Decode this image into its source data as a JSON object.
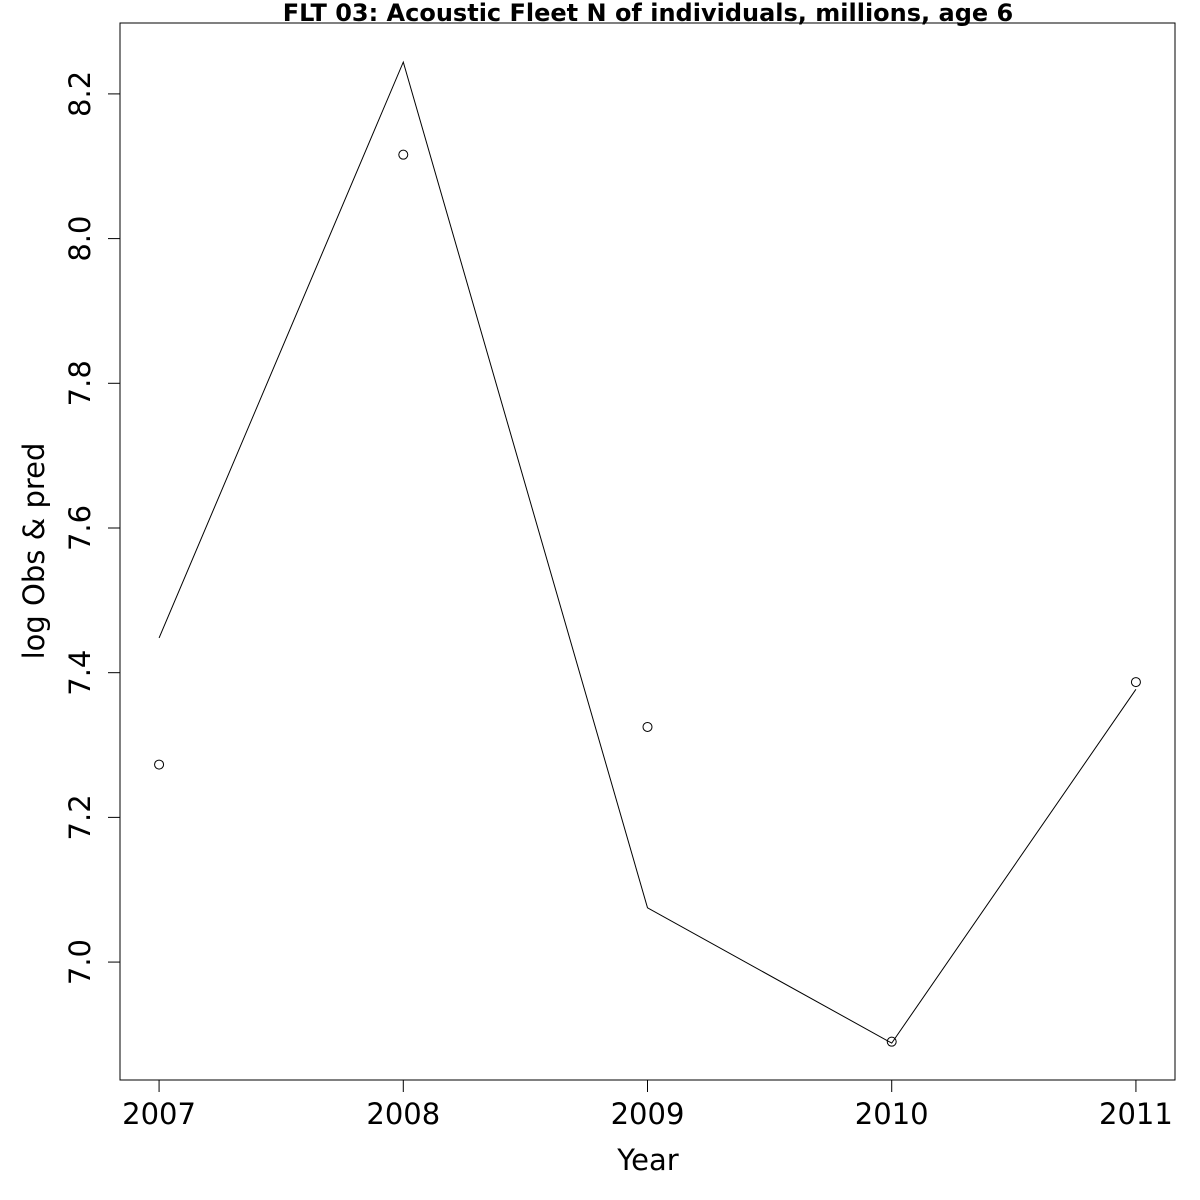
{
  "chart_data": {
    "type": "line",
    "title": "FLT 03: Acoustic Fleet  N of individuals, millions, age 6",
    "xlabel": "Year",
    "ylabel": "log Obs & pred",
    "x": [
      2007,
      2008,
      2009,
      2010,
      2011
    ],
    "x_ticks": [
      "2007",
      "2008",
      "2009",
      "2010",
      "2011"
    ],
    "y_ticks": [
      "7.0",
      "7.2",
      "7.4",
      "7.6",
      "7.8",
      "8.0",
      "8.2"
    ],
    "xlim": [
      2006.84,
      2011.16
    ],
    "ylim": [
      6.837,
      8.298
    ],
    "grid": false,
    "series": [
      {
        "kind": "line",
        "values": [
          7.448,
          8.244,
          7.075,
          6.888,
          7.377
        ]
      },
      {
        "kind": "points",
        "marker": "open-circle",
        "values": [
          7.273,
          8.116,
          7.325,
          6.89,
          7.387
        ]
      }
    ],
    "colors": {
      "ink": "#000000",
      "background": "#ffffff"
    }
  }
}
